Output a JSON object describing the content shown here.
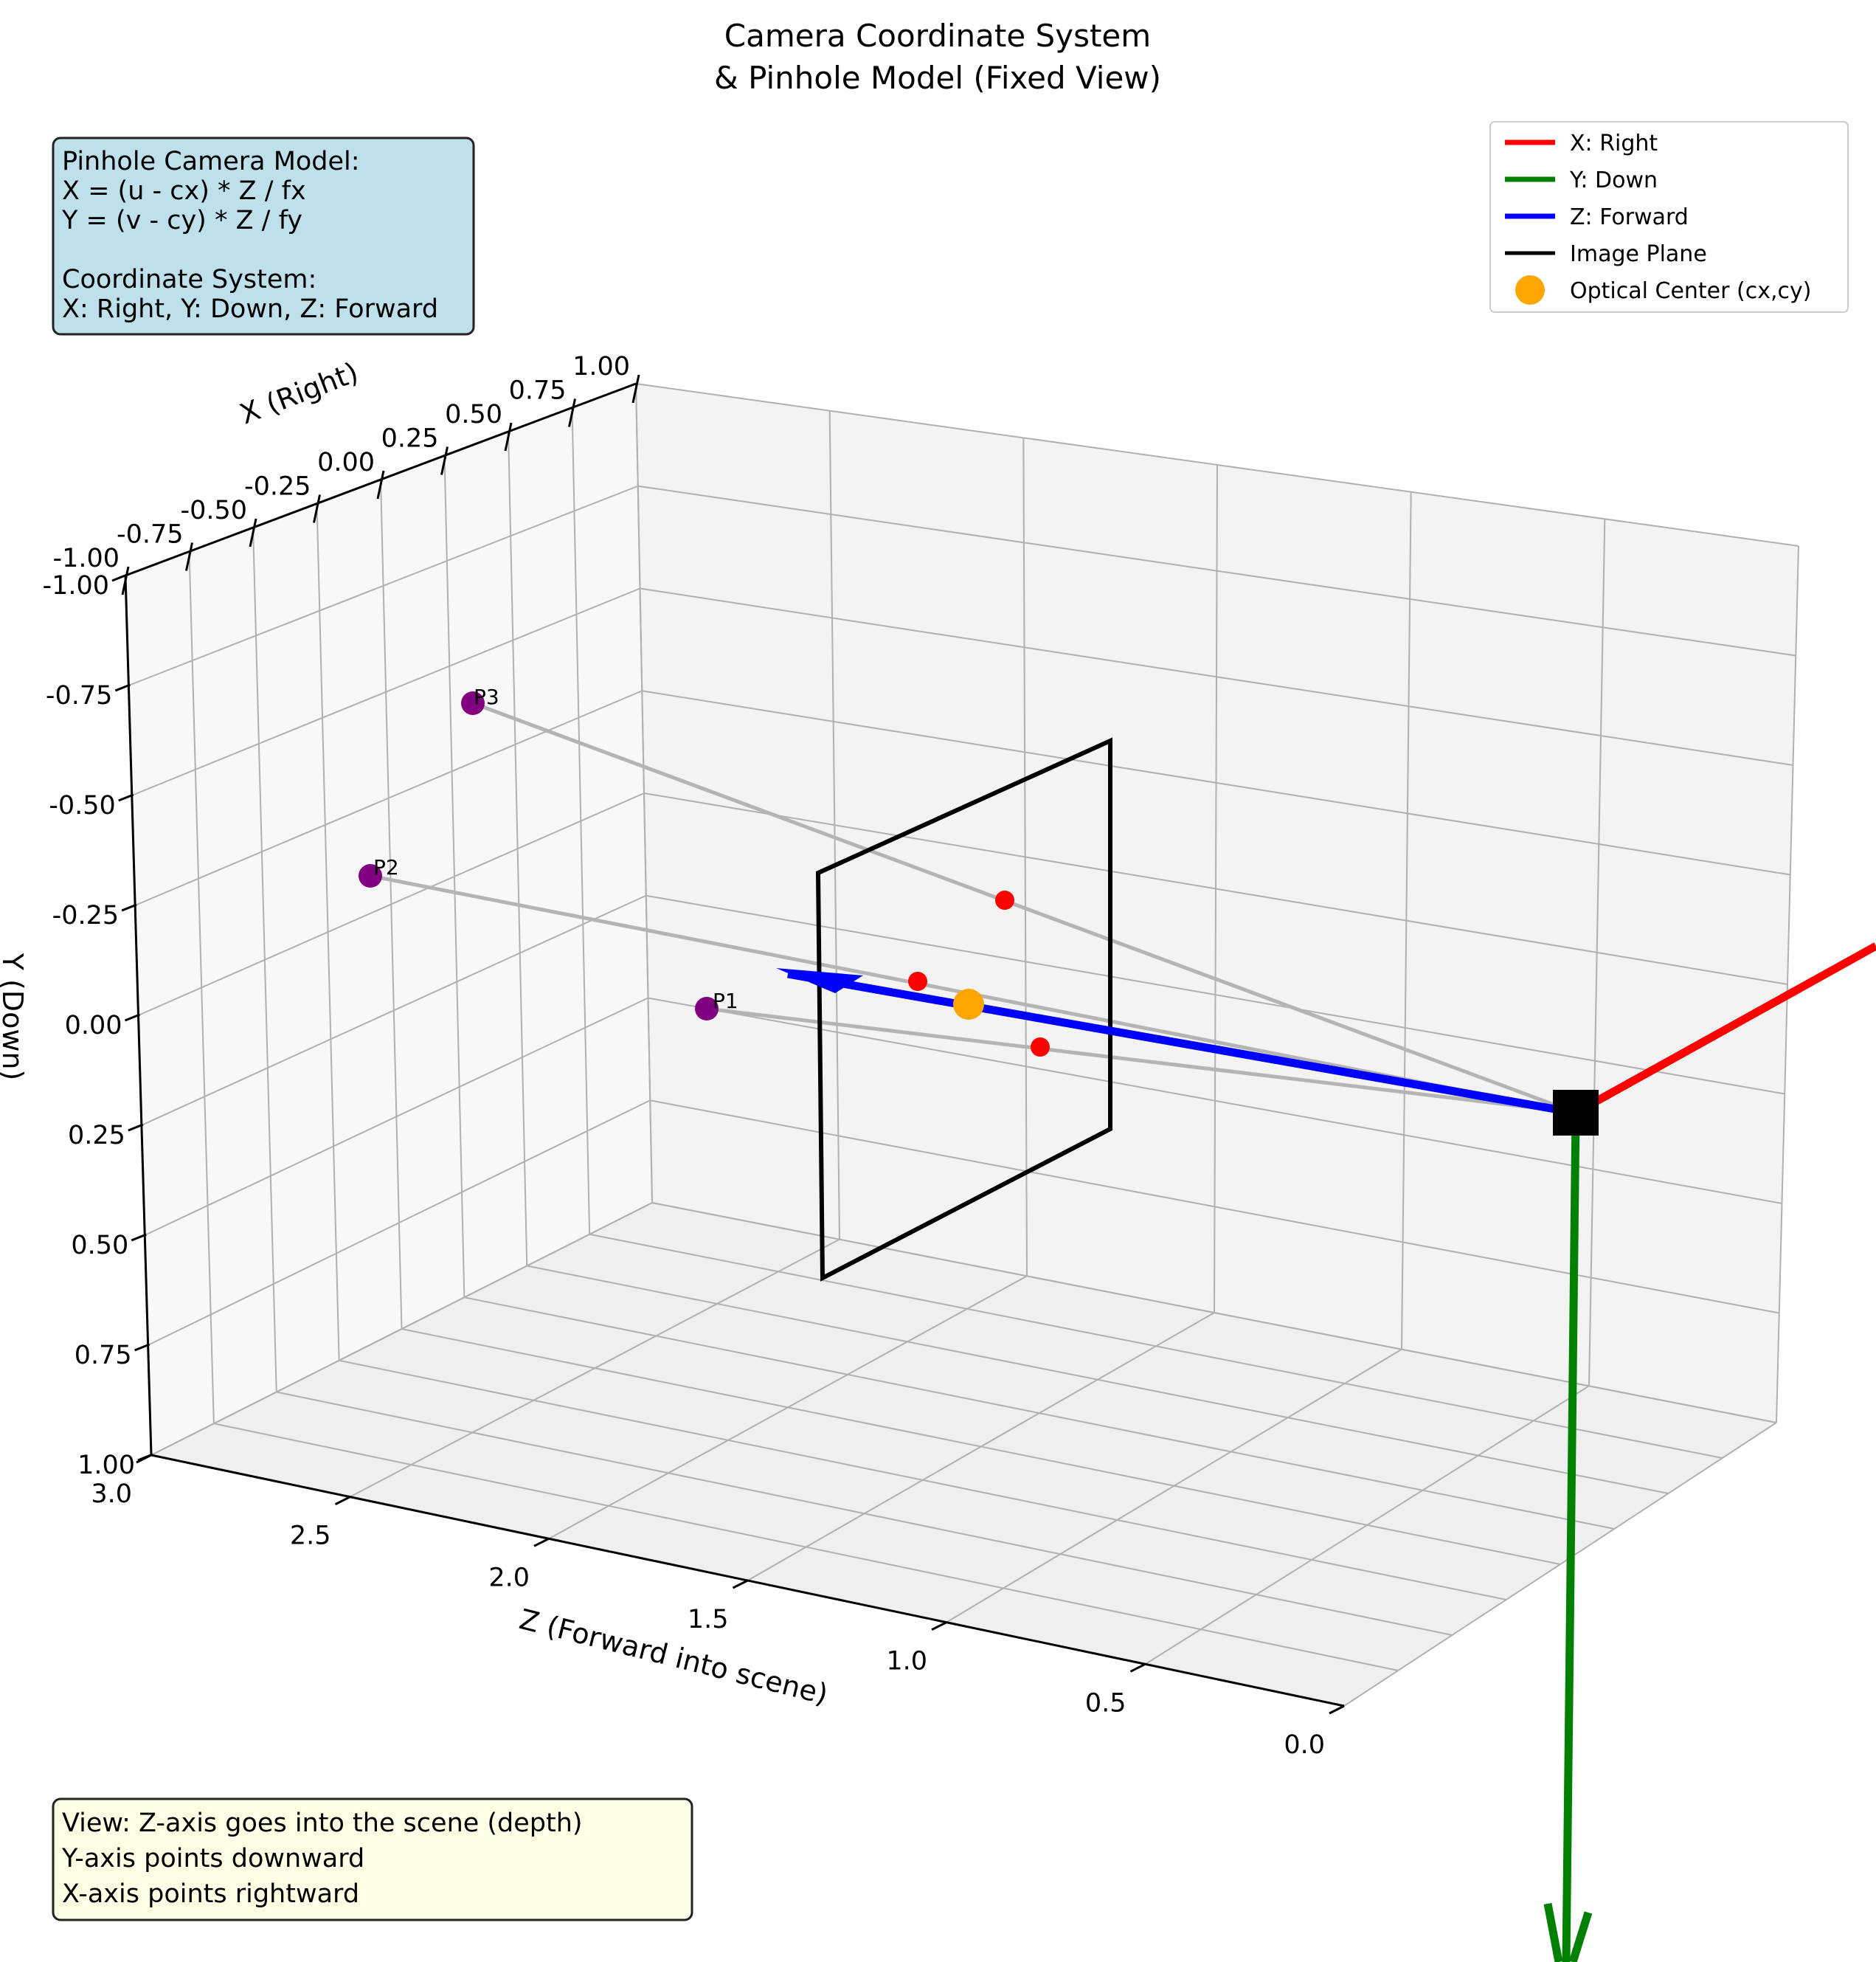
{
  "chart_data": {
    "type": "scatter3d",
    "title_lines": [
      "Camera Coordinate System",
      "& Pinhole Model (Fixed View)"
    ],
    "axes": {
      "x": {
        "label": "X (Right)",
        "range": [
          -1.0,
          1.0
        ],
        "ticks": [
          "-1.00",
          "-0.75",
          "-0.50",
          "-0.25",
          "0.00",
          "0.25",
          "0.50",
          "0.75",
          "1.00"
        ]
      },
      "y": {
        "label": "Y (Down)",
        "range": [
          1.0,
          -1.0
        ],
        "ticks": [
          "-1.00",
          "-0.75",
          "-0.50",
          "-0.25",
          "0.00",
          "0.25",
          "0.50",
          "0.75",
          "1.00"
        ]
      },
      "z": {
        "label": "Z (Forward into scene)",
        "range": [
          0.0,
          3.0
        ],
        "ticks": [
          "3.0",
          "2.5",
          "2.0",
          "1.5",
          "1.0",
          "0.5",
          "0.0"
        ]
      }
    },
    "grid": true,
    "camera_axes": [
      {
        "name": "X: Right",
        "color": "#ff0000"
      },
      {
        "name": "Y: Down",
        "color": "#008000"
      },
      {
        "name": "Z: Forward",
        "color": "#0000ff"
      }
    ],
    "image_plane": {
      "name": "Image Plane",
      "color": "#000000"
    },
    "optical_center": {
      "name": "Optical Center (cx,cy)",
      "color": "#ffa500"
    },
    "points_3d": [
      {
        "label": "P1",
        "color": "#800080"
      },
      {
        "label": "P2",
        "color": "#800080"
      },
      {
        "label": "P3",
        "color": "#800080"
      }
    ],
    "projections": {
      "color": "#ff0000",
      "count": 3
    },
    "ray_color": "#b4b4b4",
    "legend": {
      "placement": "top-right",
      "entries": [
        "X: Right",
        "Y: Down",
        "Z: Forward",
        "Image Plane",
        "Optical Center (cx,cy)"
      ]
    },
    "notes": {
      "model": {
        "lines": [
          "Pinhole Camera Model:",
          "X = (u - cx) * Z / fx",
          "Y = (v - cy) * Z / fy",
          "",
          "Coordinate System:",
          "X: Right, Y: Down, Z: Forward"
        ],
        "bg": "#add8e6"
      },
      "view": {
        "lines": [
          "View: Z-axis goes into the scene (depth)",
          "Y-axis points downward",
          "X-axis points rightward"
        ],
        "bg": "#ffffe0"
      }
    }
  }
}
